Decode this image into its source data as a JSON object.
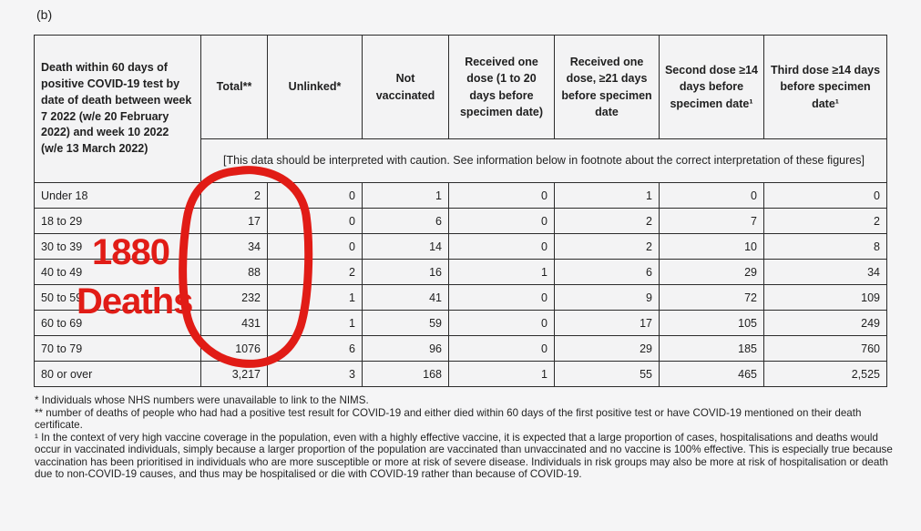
{
  "figure_label": "(b)",
  "table": {
    "row_header": "Death within 60 days of positive COVID-19 test by date of death between week 7 2022 (w/e 20 February 2022) and week 10 2022 (w/e 13 March 2022)",
    "columns": [
      "Total**",
      "Unlinked*",
      "Not vaccinated",
      "Received one dose (1 to 20 days before specimen date)",
      "Received one dose, ≥21 days before specimen date",
      "Second dose ≥14 days before specimen date¹",
      "Third dose ≥14 days before specimen date¹"
    ],
    "caution": "[This data should be interpreted with caution. See information below in footnote about the correct interpretation of these figures]",
    "rows": [
      {
        "cells": [
          "Under 18",
          "2",
          "0",
          "1",
          "0",
          "1",
          "0",
          "0"
        ]
      },
      {
        "cells": [
          "18 to 29",
          "17",
          "0",
          "6",
          "0",
          "2",
          "7",
          "2"
        ]
      },
      {
        "cells": [
          "30 to 39",
          "34",
          "0",
          "14",
          "0",
          "2",
          "10",
          "8"
        ]
      },
      {
        "cells": [
          "40 to 49",
          "88",
          "2",
          "16",
          "1",
          "6",
          "29",
          "34"
        ]
      },
      {
        "cells": [
          "50 to 59",
          "232",
          "1",
          "41",
          "0",
          "9",
          "72",
          "109"
        ]
      },
      {
        "cells": [
          "60 to 69",
          "431",
          "1",
          "59",
          "0",
          "17",
          "105",
          "249"
        ]
      },
      {
        "cells": [
          "70 to 79",
          "1076",
          "6",
          "96",
          "0",
          "29",
          "185",
          "760"
        ]
      },
      {
        "cells": [
          "80 or over",
          "3,217",
          "3",
          "168",
          "1",
          "55",
          "465",
          "2,525"
        ]
      }
    ]
  },
  "footnotes": [
    "* Individuals whose NHS numbers were unavailable to link to the NIMS.",
    "** number of deaths of people who had had a positive test result for COVID-19 and either died within 60 days of the first positive test or have COVID-19 mentioned on their death certificate.",
    "¹ In the context of very high vaccine coverage in the population, even with a highly effective vaccine, it is expected that a large proportion of cases, hospitalisations and deaths would occur in vaccinated individuals, simply because a larger proportion of the population are vaccinated than unvaccinated and no vaccine is 100% effective. This is especially true because vaccination has been prioritised in individuals who are more susceptible or more at risk of severe disease. Individuals in risk groups may also be more at risk of hospitalisation or death due to non-COVID-19 causes, and thus may be hospitalised or die with COVID-19 rather than because of COVID-19."
  ],
  "annotation": {
    "line1": "1880",
    "line2": "Deaths",
    "color": "#e11c16"
  }
}
